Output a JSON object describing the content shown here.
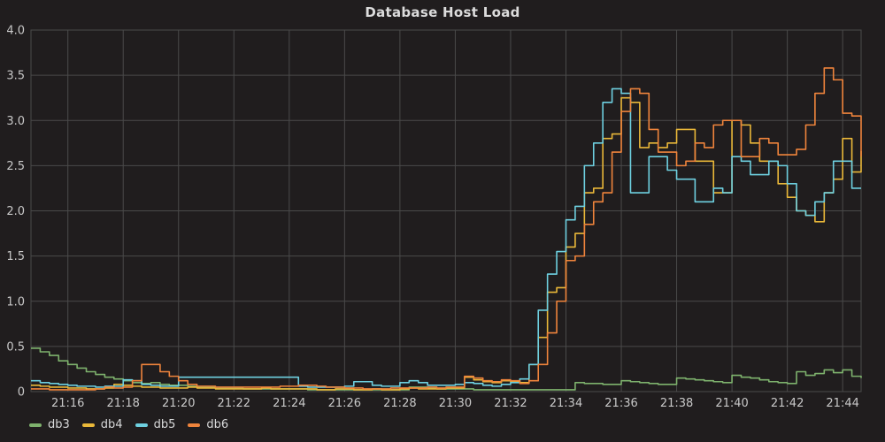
{
  "title": "Database Host Load",
  "theme": {
    "background": "#201d1e",
    "grid_color": "#4a4a4a",
    "tick_text_color": "#c8c8c8",
    "title_color": "#dcdcdc",
    "legend_text_color": "#d8d9da"
  },
  "chart_data": {
    "type": "line",
    "step_interpolation": true,
    "title": "Database Host Load",
    "xlabel": "",
    "ylabel": "",
    "grid": true,
    "legend_position": "bottom-left",
    "x_start_time": "21:14:40",
    "x_end_time": "21:44:40",
    "x_interval_seconds": 20,
    "x_tick_labels": [
      "21:16",
      "21:18",
      "21:20",
      "21:22",
      "21:24",
      "21:26",
      "21:28",
      "21:30",
      "21:32",
      "21:34",
      "21:36",
      "21:38",
      "21:40",
      "21:42",
      "21:44"
    ],
    "x_first_tick_index": 4,
    "x_tick_every_points": 6,
    "ylim": [
      0,
      4.0
    ],
    "y_tick_labels": [
      "0",
      "0.5",
      "1.0",
      "1.5",
      "2.0",
      "2.5",
      "3.0",
      "3.5",
      "4.0"
    ],
    "y_tick_values": [
      0,
      0.5,
      1.0,
      1.5,
      2.0,
      2.5,
      3.0,
      3.5,
      4.0
    ],
    "series": [
      {
        "name": "db3",
        "color": "#7eb26d",
        "values": [
          0.48,
          0.44,
          0.4,
          0.34,
          0.3,
          0.26,
          0.22,
          0.19,
          0.16,
          0.14,
          0.12,
          0.1,
          0.09,
          0.1,
          0.08,
          0.07,
          0.07,
          0.06,
          0.05,
          0.05,
          0.04,
          0.04,
          0.04,
          0.03,
          0.03,
          0.03,
          0.03,
          0.03,
          0.03,
          0.03,
          0.02,
          0.02,
          0.02,
          0.02,
          0.02,
          0.02,
          0.02,
          0.02,
          0.02,
          0.02,
          0.02,
          0.05,
          0.05,
          0.04,
          0.03,
          0.03,
          0.03,
          0.03,
          0.02,
          0.02,
          0.02,
          0.02,
          0.02,
          0.02,
          0.02,
          0.02,
          0.02,
          0.02,
          0.02,
          0.1,
          0.09,
          0.09,
          0.08,
          0.08,
          0.12,
          0.11,
          0.1,
          0.09,
          0.08,
          0.08,
          0.15,
          0.14,
          0.13,
          0.12,
          0.11,
          0.1,
          0.18,
          0.16,
          0.15,
          0.13,
          0.11,
          0.1,
          0.09,
          0.22,
          0.18,
          0.2,
          0.24,
          0.21,
          0.24,
          0.17,
          0.15
        ]
      },
      {
        "name": "db4",
        "color": "#eab839",
        "values": [
          0.07,
          0.06,
          0.05,
          0.05,
          0.04,
          0.04,
          0.03,
          0.03,
          0.04,
          0.08,
          0.07,
          0.06,
          0.05,
          0.05,
          0.04,
          0.04,
          0.04,
          0.05,
          0.04,
          0.04,
          0.03,
          0.03,
          0.03,
          0.03,
          0.03,
          0.04,
          0.03,
          0.03,
          0.03,
          0.03,
          0.03,
          0.02,
          0.02,
          0.03,
          0.03,
          0.02,
          0.02,
          0.03,
          0.02,
          0.02,
          0.03,
          0.04,
          0.03,
          0.03,
          0.03,
          0.04,
          0.04,
          0.16,
          0.13,
          0.11,
          0.1,
          0.12,
          0.11,
          0.1,
          0.3,
          0.6,
          1.1,
          1.15,
          1.6,
          1.75,
          2.2,
          2.25,
          2.8,
          2.85,
          3.25,
          3.2,
          2.7,
          2.75,
          2.7,
          2.75,
          2.9,
          2.9,
          2.55,
          2.55,
          2.2,
          2.2,
          3.0,
          2.95,
          2.75,
          2.55,
          2.55,
          2.3,
          2.15,
          2.0,
          1.95,
          1.88,
          2.2,
          2.35,
          2.8,
          2.43,
          2.66
        ]
      },
      {
        "name": "db5",
        "color": "#6ed0e0",
        "values": [
          0.12,
          0.1,
          0.09,
          0.08,
          0.07,
          0.06,
          0.06,
          0.05,
          0.06,
          0.06,
          0.13,
          0.12,
          0.08,
          0.07,
          0.06,
          0.06,
          0.16,
          0.16,
          0.16,
          0.16,
          0.16,
          0.16,
          0.16,
          0.16,
          0.16,
          0.16,
          0.16,
          0.16,
          0.16,
          0.06,
          0.05,
          0.05,
          0.05,
          0.05,
          0.06,
          0.11,
          0.11,
          0.07,
          0.06,
          0.06,
          0.1,
          0.12,
          0.1,
          0.07,
          0.07,
          0.07,
          0.08,
          0.1,
          0.09,
          0.07,
          0.06,
          0.08,
          0.1,
          0.14,
          0.3,
          0.9,
          1.3,
          1.55,
          1.9,
          2.05,
          2.5,
          2.75,
          3.2,
          3.35,
          3.3,
          2.2,
          2.2,
          2.6,
          2.6,
          2.45,
          2.35,
          2.35,
          2.1,
          2.1,
          2.25,
          2.2,
          2.6,
          2.55,
          2.4,
          2.4,
          2.55,
          2.5,
          2.3,
          2.0,
          1.95,
          2.1,
          2.2,
          2.55,
          2.55,
          2.25,
          2.25
        ]
      },
      {
        "name": "db6",
        "color": "#ef843c",
        "values": [
          0.03,
          0.03,
          0.02,
          0.02,
          0.02,
          0.02,
          0.02,
          0.03,
          0.05,
          0.04,
          0.05,
          0.12,
          0.3,
          0.3,
          0.22,
          0.17,
          0.12,
          0.08,
          0.06,
          0.06,
          0.05,
          0.05,
          0.05,
          0.05,
          0.05,
          0.05,
          0.05,
          0.06,
          0.06,
          0.07,
          0.07,
          0.06,
          0.05,
          0.05,
          0.04,
          0.04,
          0.03,
          0.03,
          0.03,
          0.04,
          0.04,
          0.04,
          0.04,
          0.05,
          0.04,
          0.05,
          0.05,
          0.17,
          0.15,
          0.12,
          0.11,
          0.13,
          0.12,
          0.09,
          0.12,
          0.3,
          0.65,
          1.0,
          1.45,
          1.5,
          1.85,
          2.1,
          2.2,
          2.65,
          3.1,
          3.35,
          3.3,
          2.9,
          2.65,
          2.65,
          2.5,
          2.55,
          2.75,
          2.7,
          2.95,
          3.0,
          3.0,
          2.6,
          2.6,
          2.8,
          2.75,
          2.62,
          2.62,
          2.68,
          2.95,
          3.3,
          3.58,
          3.45,
          3.08,
          3.05,
          2.6
        ]
      }
    ]
  },
  "legend": {
    "items": [
      {
        "label": "db3",
        "color": "#7eb26d"
      },
      {
        "label": "db4",
        "color": "#eab839"
      },
      {
        "label": "db5",
        "color": "#6ed0e0"
      },
      {
        "label": "db6",
        "color": "#ef843c"
      }
    ]
  }
}
